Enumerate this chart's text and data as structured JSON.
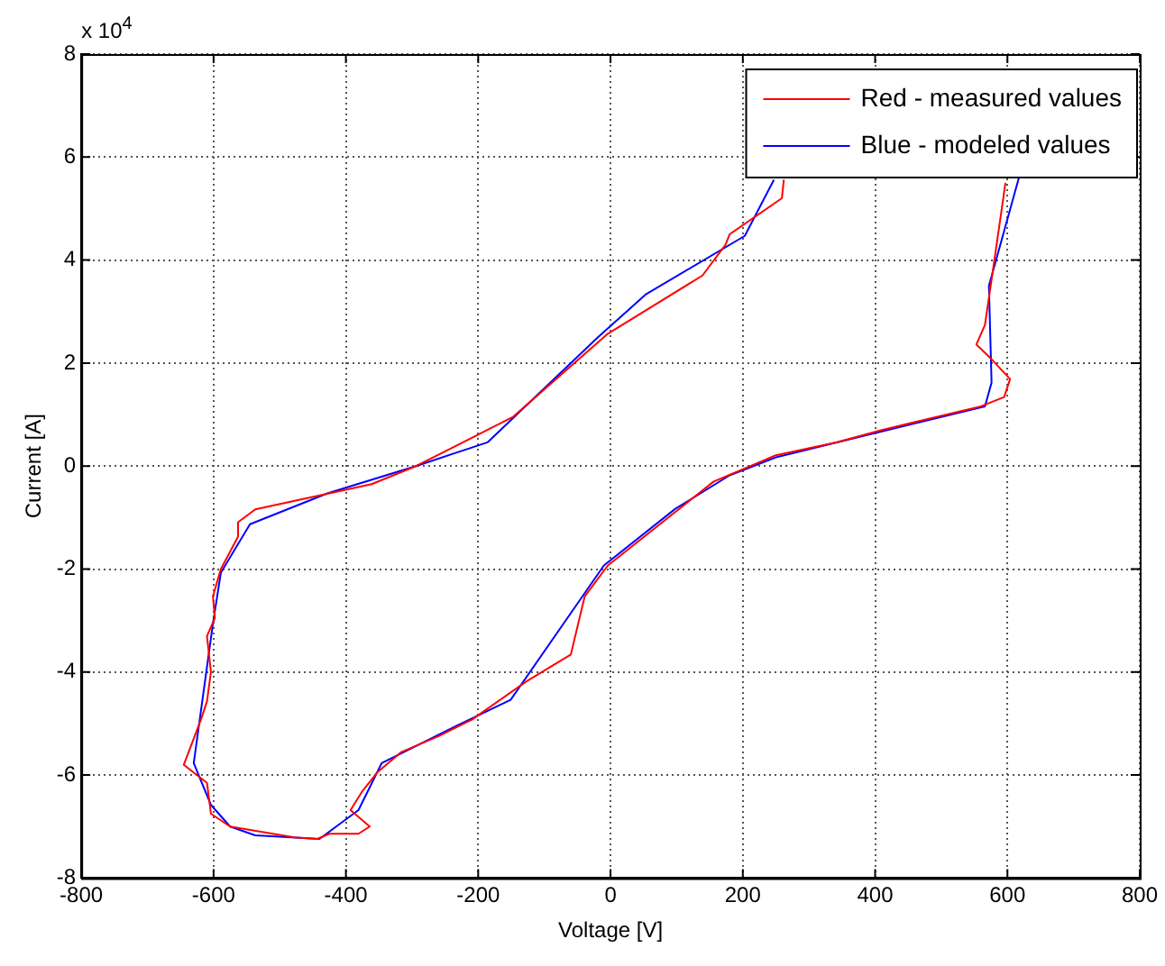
{
  "chart_data": {
    "type": "line",
    "xlabel": "Voltage [V]",
    "ylabel": "Current [A]",
    "annotations": [
      "x 10$^{4}$"
    ],
    "xlim": [
      -800,
      800
    ],
    "xticks": [
      -800,
      -600,
      -400,
      -200,
      0,
      200,
      400,
      600,
      800
    ],
    "ylim": [
      -8,
      8
    ],
    "yticks": [
      -8,
      -6,
      -4,
      -2,
      0,
      2,
      4,
      6,
      8
    ],
    "grid": true,
    "legend": "top right",
    "marker": "none",
    "line_style": "solid",
    "series": [
      {
        "name": "Red - measured values",
        "color": "#ff0000",
        "x": [
          262,
          259,
          180,
          174,
          139,
          -4,
          -148,
          -294,
          -361,
          -537,
          -563,
          -563,
          -589,
          -601,
          -598,
          -610,
          -604,
          -610,
          -619,
          -645,
          -610,
          -604,
          -575,
          -478,
          -443,
          -425,
          -381,
          -364,
          -393,
          -376,
          -352,
          -317,
          -259,
          -209,
          -127,
          -60,
          -39,
          -4,
          156,
          250,
          341,
          410,
          560,
          595,
          604,
          574,
          553,
          566,
          578,
          589,
          597
        ],
        "values": [
          5.56,
          5.2,
          4.5,
          4.3,
          3.7,
          2.57,
          0.95,
          0,
          -0.35,
          -0.84,
          -1.09,
          -1.37,
          -2.0,
          -2.53,
          -2.95,
          -3.3,
          -4.0,
          -4.57,
          -4.92,
          -5.8,
          -6.15,
          -6.75,
          -7.0,
          -7.21,
          -7.24,
          -7.14,
          -7.14,
          -7.0,
          -6.68,
          -6.33,
          -5.94,
          -5.56,
          -5.24,
          -4.92,
          -4.18,
          -3.66,
          -2.53,
          -1.93,
          -0.3,
          0.21,
          0.46,
          0.7,
          1.16,
          1.34,
          1.69,
          2.1,
          2.36,
          2.74,
          3.8,
          4.78,
          5.5
        ]
      },
      {
        "name": "Blue - modeled values",
        "color": "#0000ff",
        "x": [
          247,
          203,
          54,
          -19,
          -186,
          -294,
          -428,
          -545,
          -589,
          -601,
          -630,
          -604,
          -575,
          -537,
          -440,
          -381,
          -346,
          -224,
          -151,
          -10,
          98,
          180,
          250,
          566,
          576,
          572,
          618
        ],
        "values": [
          5.56,
          4.47,
          3.34,
          2.5,
          0.46,
          0,
          -0.53,
          -1.13,
          -2.07,
          -3.06,
          -5.77,
          -6.58,
          -7.0,
          -7.17,
          -7.24,
          -6.68,
          -5.77,
          -4.99,
          -4.54,
          -1.93,
          -0.83,
          -0.18,
          0.17,
          1.16,
          1.62,
          3.5,
          5.63
        ]
      }
    ]
  }
}
